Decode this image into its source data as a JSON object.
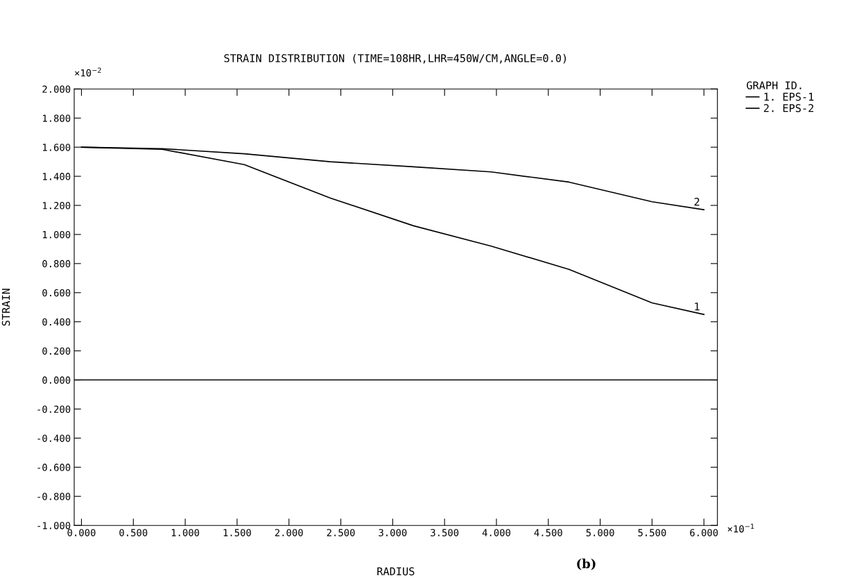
{
  "chart_data": {
    "type": "line",
    "title": "STRAIN DISTRIBUTION (TIME=108HR,LHR=450W/CM,ANGLE=0.0)",
    "xlabel": "RADIUS",
    "ylabel": "STRAIN",
    "legend_title": "GRAPH ID.",
    "legend": "right",
    "grid": false,
    "marker": "none",
    "line_style": "solid",
    "xlim": [
      -0.07,
      6.13
    ],
    "ylim": [
      -1.0,
      2.0
    ],
    "xticks": [
      {
        "value": 0,
        "label": "0.000"
      },
      {
        "value": 0.5,
        "label": "0.500"
      },
      {
        "value": 1,
        "label": "1.000"
      },
      {
        "value": 1.5,
        "label": "1.500"
      },
      {
        "value": 2,
        "label": "2.000"
      },
      {
        "value": 2.5,
        "label": "2.500"
      },
      {
        "value": 3,
        "label": "3.000"
      },
      {
        "value": 3.5,
        "label": "3.500"
      },
      {
        "value": 4,
        "label": "4.000"
      },
      {
        "value": 4.5,
        "label": "4.500"
      },
      {
        "value": 5,
        "label": "5.000"
      },
      {
        "value": 5.5,
        "label": "5.500"
      },
      {
        "value": 6,
        "label": "6.000"
      }
    ],
    "yticks": [
      {
        "value": -1,
        "label": "-1.000"
      },
      {
        "value": -0.8,
        "label": "-0.800"
      },
      {
        "value": -0.6,
        "label": "-0.600"
      },
      {
        "value": -0.4,
        "label": "-0.400"
      },
      {
        "value": -0.2,
        "label": "-0.200"
      },
      {
        "value": 0,
        "label": "0.000"
      },
      {
        "value": 0.2,
        "label": "0.200"
      },
      {
        "value": 0.4,
        "label": "0.400"
      },
      {
        "value": 0.6,
        "label": "0.600"
      },
      {
        "value": 0.8,
        "label": "0.800"
      },
      {
        "value": 1,
        "label": "1.000"
      },
      {
        "value": 1.2,
        "label": "1.200"
      },
      {
        "value": 1.4,
        "label": "1.400"
      },
      {
        "value": 1.6,
        "label": "1.600"
      },
      {
        "value": 1.8,
        "label": "1.800"
      },
      {
        "value": 2,
        "label": "2.000"
      }
    ],
    "x": [
      0,
      0.78,
      1.57,
      2.4,
      3.2,
      3.95,
      4.7,
      5.5,
      6.0
    ],
    "series": [
      {
        "name": "1. EPS-1",
        "color": "#000000",
        "values": [
          1.6,
          1.585,
          1.48,
          1.25,
          1.06,
          0.92,
          0.76,
          0.53,
          0.45
        ]
      },
      {
        "name": "2. EPS-2",
        "color": "#000000",
        "values": [
          1.6,
          1.59,
          1.555,
          1.5,
          1.465,
          1.43,
          1.36,
          1.225,
          1.17
        ]
      }
    ],
    "ref_lines": [
      {
        "axis": "y",
        "value": 0,
        "color": "#000000",
        "line_style": "solid"
      }
    ],
    "annotations": [
      {
        "text": "1",
        "x": 6.0,
        "y": 0.45
      },
      {
        "text": "2",
        "x": 6.0,
        "y": 1.17
      },
      "×10$^{−2}$",
      "×10$^{−1}$",
      "(b)"
    ]
  }
}
